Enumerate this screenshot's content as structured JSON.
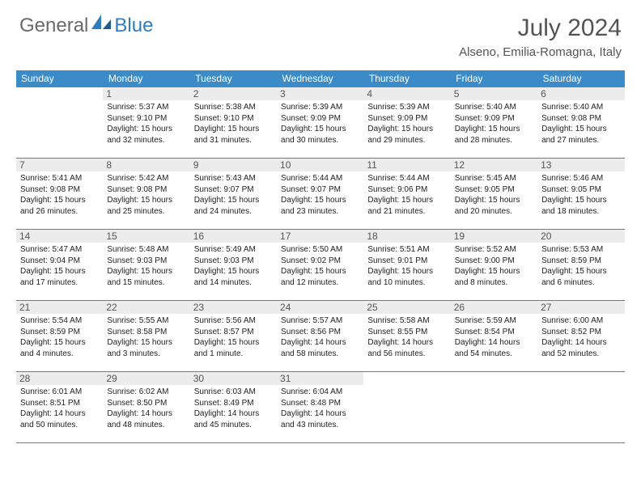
{
  "brand": {
    "part1": "General",
    "part2": "Blue"
  },
  "title": "July 2024",
  "location": "Alseno, Emilia-Romagna, Italy",
  "colors": {
    "header_bg": "#3b8bc8",
    "daynum_bg": "#ececec",
    "border": "#3b8bc8",
    "text": "#333333",
    "brand_gray": "#6a6a6a",
    "brand_blue": "#2f7cc0"
  },
  "day_headers": [
    "Sunday",
    "Monday",
    "Tuesday",
    "Wednesday",
    "Thursday",
    "Friday",
    "Saturday"
  ],
  "weeks": [
    [
      {
        "day": "",
        "sunrise": "",
        "sunset": "",
        "daylight": ""
      },
      {
        "day": "1",
        "sunrise": "Sunrise: 5:37 AM",
        "sunset": "Sunset: 9:10 PM",
        "daylight": "Daylight: 15 hours and 32 minutes."
      },
      {
        "day": "2",
        "sunrise": "Sunrise: 5:38 AM",
        "sunset": "Sunset: 9:10 PM",
        "daylight": "Daylight: 15 hours and 31 minutes."
      },
      {
        "day": "3",
        "sunrise": "Sunrise: 5:39 AM",
        "sunset": "Sunset: 9:09 PM",
        "daylight": "Daylight: 15 hours and 30 minutes."
      },
      {
        "day": "4",
        "sunrise": "Sunrise: 5:39 AM",
        "sunset": "Sunset: 9:09 PM",
        "daylight": "Daylight: 15 hours and 29 minutes."
      },
      {
        "day": "5",
        "sunrise": "Sunrise: 5:40 AM",
        "sunset": "Sunset: 9:09 PM",
        "daylight": "Daylight: 15 hours and 28 minutes."
      },
      {
        "day": "6",
        "sunrise": "Sunrise: 5:40 AM",
        "sunset": "Sunset: 9:08 PM",
        "daylight": "Daylight: 15 hours and 27 minutes."
      }
    ],
    [
      {
        "day": "7",
        "sunrise": "Sunrise: 5:41 AM",
        "sunset": "Sunset: 9:08 PM",
        "daylight": "Daylight: 15 hours and 26 minutes."
      },
      {
        "day": "8",
        "sunrise": "Sunrise: 5:42 AM",
        "sunset": "Sunset: 9:08 PM",
        "daylight": "Daylight: 15 hours and 25 minutes."
      },
      {
        "day": "9",
        "sunrise": "Sunrise: 5:43 AM",
        "sunset": "Sunset: 9:07 PM",
        "daylight": "Daylight: 15 hours and 24 minutes."
      },
      {
        "day": "10",
        "sunrise": "Sunrise: 5:44 AM",
        "sunset": "Sunset: 9:07 PM",
        "daylight": "Daylight: 15 hours and 23 minutes."
      },
      {
        "day": "11",
        "sunrise": "Sunrise: 5:44 AM",
        "sunset": "Sunset: 9:06 PM",
        "daylight": "Daylight: 15 hours and 21 minutes."
      },
      {
        "day": "12",
        "sunrise": "Sunrise: 5:45 AM",
        "sunset": "Sunset: 9:05 PM",
        "daylight": "Daylight: 15 hours and 20 minutes."
      },
      {
        "day": "13",
        "sunrise": "Sunrise: 5:46 AM",
        "sunset": "Sunset: 9:05 PM",
        "daylight": "Daylight: 15 hours and 18 minutes."
      }
    ],
    [
      {
        "day": "14",
        "sunrise": "Sunrise: 5:47 AM",
        "sunset": "Sunset: 9:04 PM",
        "daylight": "Daylight: 15 hours and 17 minutes."
      },
      {
        "day": "15",
        "sunrise": "Sunrise: 5:48 AM",
        "sunset": "Sunset: 9:03 PM",
        "daylight": "Daylight: 15 hours and 15 minutes."
      },
      {
        "day": "16",
        "sunrise": "Sunrise: 5:49 AM",
        "sunset": "Sunset: 9:03 PM",
        "daylight": "Daylight: 15 hours and 14 minutes."
      },
      {
        "day": "17",
        "sunrise": "Sunrise: 5:50 AM",
        "sunset": "Sunset: 9:02 PM",
        "daylight": "Daylight: 15 hours and 12 minutes."
      },
      {
        "day": "18",
        "sunrise": "Sunrise: 5:51 AM",
        "sunset": "Sunset: 9:01 PM",
        "daylight": "Daylight: 15 hours and 10 minutes."
      },
      {
        "day": "19",
        "sunrise": "Sunrise: 5:52 AM",
        "sunset": "Sunset: 9:00 PM",
        "daylight": "Daylight: 15 hours and 8 minutes."
      },
      {
        "day": "20",
        "sunrise": "Sunrise: 5:53 AM",
        "sunset": "Sunset: 8:59 PM",
        "daylight": "Daylight: 15 hours and 6 minutes."
      }
    ],
    [
      {
        "day": "21",
        "sunrise": "Sunrise: 5:54 AM",
        "sunset": "Sunset: 8:59 PM",
        "daylight": "Daylight: 15 hours and 4 minutes."
      },
      {
        "day": "22",
        "sunrise": "Sunrise: 5:55 AM",
        "sunset": "Sunset: 8:58 PM",
        "daylight": "Daylight: 15 hours and 3 minutes."
      },
      {
        "day": "23",
        "sunrise": "Sunrise: 5:56 AM",
        "sunset": "Sunset: 8:57 PM",
        "daylight": "Daylight: 15 hours and 1 minute."
      },
      {
        "day": "24",
        "sunrise": "Sunrise: 5:57 AM",
        "sunset": "Sunset: 8:56 PM",
        "daylight": "Daylight: 14 hours and 58 minutes."
      },
      {
        "day": "25",
        "sunrise": "Sunrise: 5:58 AM",
        "sunset": "Sunset: 8:55 PM",
        "daylight": "Daylight: 14 hours and 56 minutes."
      },
      {
        "day": "26",
        "sunrise": "Sunrise: 5:59 AM",
        "sunset": "Sunset: 8:54 PM",
        "daylight": "Daylight: 14 hours and 54 minutes."
      },
      {
        "day": "27",
        "sunrise": "Sunrise: 6:00 AM",
        "sunset": "Sunset: 8:52 PM",
        "daylight": "Daylight: 14 hours and 52 minutes."
      }
    ],
    [
      {
        "day": "28",
        "sunrise": "Sunrise: 6:01 AM",
        "sunset": "Sunset: 8:51 PM",
        "daylight": "Daylight: 14 hours and 50 minutes."
      },
      {
        "day": "29",
        "sunrise": "Sunrise: 6:02 AM",
        "sunset": "Sunset: 8:50 PM",
        "daylight": "Daylight: 14 hours and 48 minutes."
      },
      {
        "day": "30",
        "sunrise": "Sunrise: 6:03 AM",
        "sunset": "Sunset: 8:49 PM",
        "daylight": "Daylight: 14 hours and 45 minutes."
      },
      {
        "day": "31",
        "sunrise": "Sunrise: 6:04 AM",
        "sunset": "Sunset: 8:48 PM",
        "daylight": "Daylight: 14 hours and 43 minutes."
      },
      {
        "day": "",
        "sunrise": "",
        "sunset": "",
        "daylight": ""
      },
      {
        "day": "",
        "sunrise": "",
        "sunset": "",
        "daylight": ""
      },
      {
        "day": "",
        "sunrise": "",
        "sunset": "",
        "daylight": ""
      }
    ]
  ]
}
